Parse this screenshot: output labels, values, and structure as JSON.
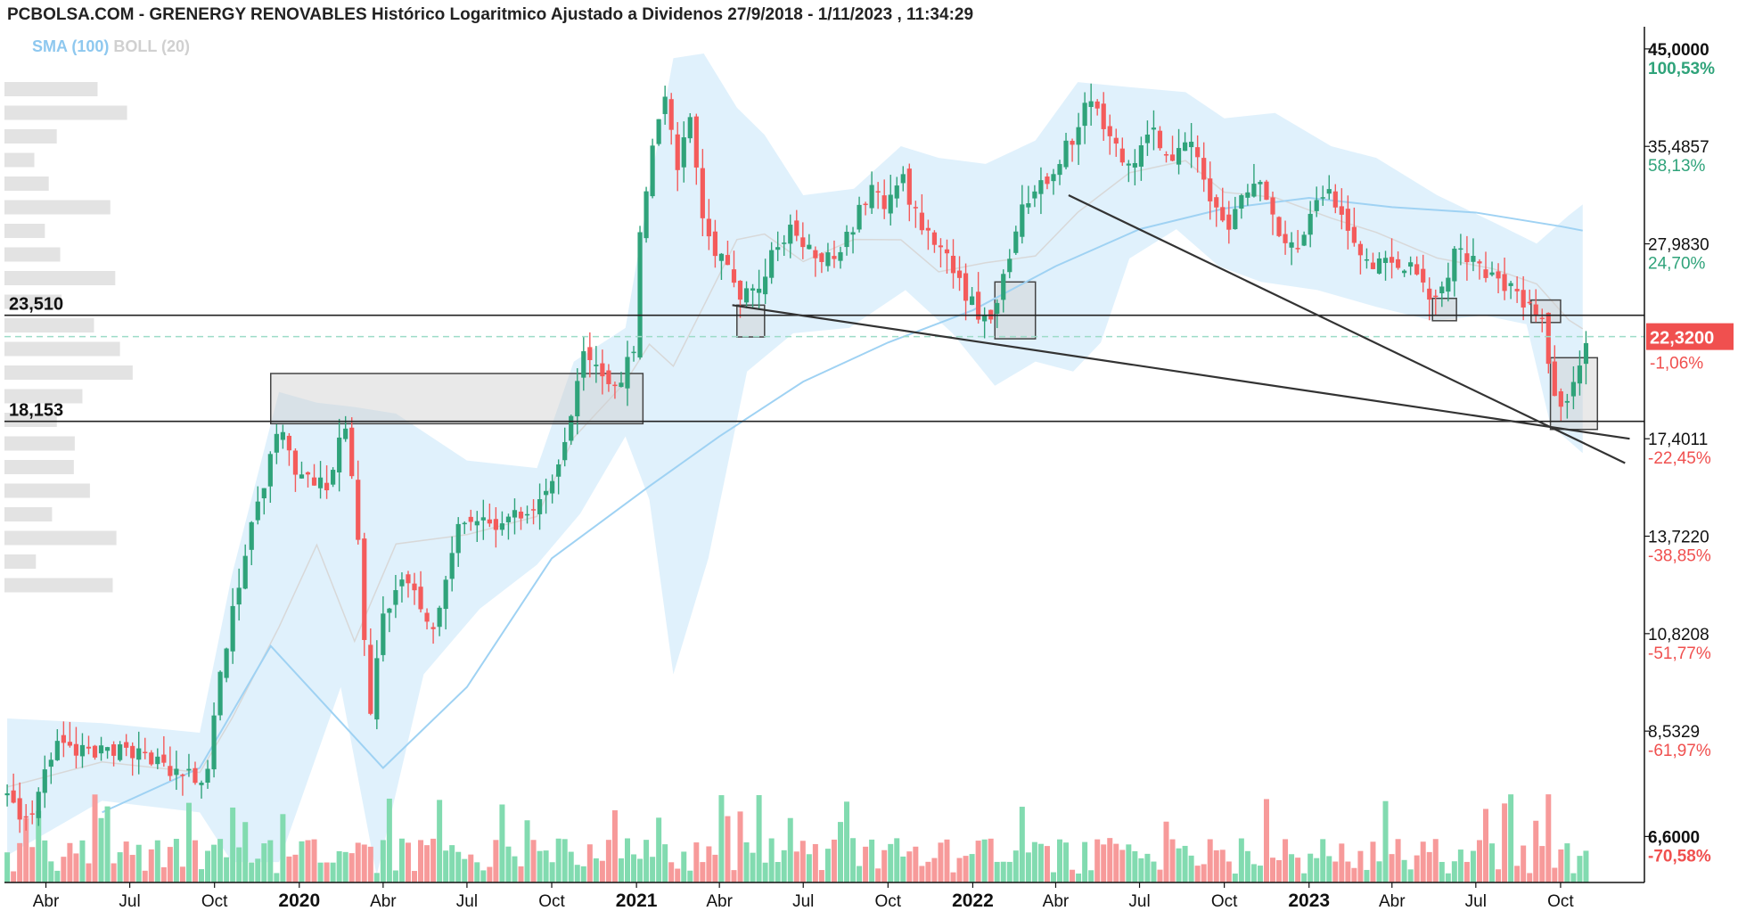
{
  "header": {
    "title": "PCBOLSA.COM - GRENERGY RENOVABLES Histórico Logaritmico Ajustado a Dividenos 27/9/2018 - 1/11/2023 , 11:34:29",
    "sma_label": "SMA (100)",
    "boll_label": "BOLL (20)"
  },
  "colors": {
    "up": "#2fa37a",
    "down": "#f45b5b",
    "vol_up": "#82dbb0",
    "vol_down": "#f79a9a",
    "band_fill": "#dbeefb",
    "sma": "#9fd2f3",
    "boll_mid": "#d8d8d8",
    "hline": "#222222",
    "last_price_bg": "#f0504f",
    "axis_text": "#111111",
    "pct_up": "#2fa37a",
    "pct_down": "#f0504f"
  },
  "chart_data": {
    "type": "candlestick",
    "scale": "log",
    "ylim": [
      5.9,
      47.5
    ],
    "x_range": [
      "2019-02-15",
      "2023-12-31"
    ],
    "right_axis": [
      {
        "price": "45,0000",
        "value": 45.0,
        "pct": "100,53%"
      },
      {
        "price": "35,4857",
        "value": 35.4857,
        "pct": "58,13%"
      },
      {
        "price": "27,9830",
        "value": 27.983,
        "pct": "24,70%"
      },
      {
        "price": "17,4011",
        "value": 17.4011,
        "pct": "-22,45%"
      },
      {
        "price": "13,7220",
        "value": 13.722,
        "pct": "-38,85%"
      },
      {
        "price": "10,8208",
        "value": 10.8208,
        "pct": "-51,77%"
      },
      {
        "price": "8,5329",
        "value": 8.5329,
        "pct": "-61,97%"
      },
      {
        "price": "6,6000",
        "value": 6.6,
        "pct": "-70,58%"
      }
    ],
    "last_price": {
      "value": 22.32,
      "label": "22,3200",
      "pct": "-1,06%"
    },
    "levels": [
      {
        "label": "23,510",
        "value": 23.51
      },
      {
        "label": "18,153",
        "value": 18.153
      }
    ],
    "x_ticks": [
      {
        "label": "Abr",
        "date": "2019-04-01",
        "bold": false
      },
      {
        "label": "Jul",
        "date": "2019-07-01",
        "bold": false
      },
      {
        "label": "Oct",
        "date": "2019-10-01",
        "bold": false
      },
      {
        "label": "2020",
        "date": "2020-01-01",
        "bold": true
      },
      {
        "label": "Abr",
        "date": "2020-04-01",
        "bold": false
      },
      {
        "label": "Jul",
        "date": "2020-07-01",
        "bold": false
      },
      {
        "label": "Oct",
        "date": "2020-10-01",
        "bold": false
      },
      {
        "label": "2021",
        "date": "2021-01-01",
        "bold": true
      },
      {
        "label": "Abr",
        "date": "2021-04-01",
        "bold": false
      },
      {
        "label": "Jul",
        "date": "2021-07-01",
        "bold": false
      },
      {
        "label": "Oct",
        "date": "2021-10-01",
        "bold": false
      },
      {
        "label": "2022",
        "date": "2022-01-01",
        "bold": true
      },
      {
        "label": "Abr",
        "date": "2022-04-01",
        "bold": false
      },
      {
        "label": "Jul",
        "date": "2022-07-01",
        "bold": false
      },
      {
        "label": "Oct",
        "date": "2022-10-01",
        "bold": false
      },
      {
        "label": "2023",
        "date": "2023-01-01",
        "bold": true
      },
      {
        "label": "Abr",
        "date": "2023-04-01",
        "bold": false
      },
      {
        "label": "Jul",
        "date": "2023-07-01",
        "bold": false
      },
      {
        "label": "Oct",
        "date": "2023-10-01",
        "bold": false
      }
    ],
    "price_path": [
      [
        "2019-02-18",
        7.4
      ],
      [
        "2019-03-01",
        7.1
      ],
      [
        "2019-03-15",
        6.7
      ],
      [
        "2019-04-01",
        8.0
      ],
      [
        "2019-04-20",
        8.3
      ],
      [
        "2019-05-20",
        8.1
      ],
      [
        "2019-06-20",
        8.1
      ],
      [
        "2019-07-20",
        8.0
      ],
      [
        "2019-08-15",
        7.8
      ],
      [
        "2019-09-10",
        7.6
      ],
      [
        "2019-09-25",
        7.8
      ],
      [
        "2019-10-05",
        9.5
      ],
      [
        "2019-10-20",
        11.5
      ],
      [
        "2019-11-05",
        13.2
      ],
      [
        "2019-11-25",
        16.0
      ],
      [
        "2019-12-10",
        18.5
      ],
      [
        "2019-12-25",
        16.2
      ],
      [
        "2020-01-15",
        15.5
      ],
      [
        "2020-02-05",
        15.8
      ],
      [
        "2020-02-20",
        18.3
      ],
      [
        "2020-03-02",
        14.5
      ],
      [
        "2020-03-10",
        11.5
      ],
      [
        "2020-03-18",
        8.8
      ],
      [
        "2020-03-30",
        11.0
      ],
      [
        "2020-04-15",
        12.0
      ],
      [
        "2020-05-01",
        12.5
      ],
      [
        "2020-05-20",
        10.8
      ],
      [
        "2020-06-10",
        12.5
      ],
      [
        "2020-06-25",
        14.5
      ],
      [
        "2020-07-15",
        14.5
      ],
      [
        "2020-08-05",
        13.8
      ],
      [
        "2020-08-25",
        14.5
      ],
      [
        "2020-09-20",
        15.2
      ],
      [
        "2020-10-10",
        16.5
      ],
      [
        "2020-10-25",
        19.2
      ],
      [
        "2020-11-05",
        21.8
      ],
      [
        "2020-11-25",
        20.5
      ],
      [
        "2020-12-10",
        20.0
      ],
      [
        "2020-12-28",
        21.2
      ],
      [
        "2021-01-05",
        28.5
      ],
      [
        "2021-01-20",
        36.0
      ],
      [
        "2021-02-01",
        40.5
      ],
      [
        "2021-02-15",
        34.0
      ],
      [
        "2021-02-28",
        37.5
      ],
      [
        "2021-03-15",
        29.5
      ],
      [
        "2021-03-30",
        27.5
      ],
      [
        "2021-04-15",
        25.8
      ],
      [
        "2021-04-30",
        24.5
      ],
      [
        "2021-05-15",
        25.5
      ],
      [
        "2021-06-01",
        27.8
      ],
      [
        "2021-06-20",
        29.0
      ],
      [
        "2021-07-10",
        27.2
      ],
      [
        "2021-08-01",
        27.0
      ],
      [
        "2021-08-25",
        29.5
      ],
      [
        "2021-09-15",
        32.0
      ],
      [
        "2021-09-30",
        31.0
      ],
      [
        "2021-10-15",
        33.5
      ],
      [
        "2021-11-01",
        30.0
      ],
      [
        "2021-11-25",
        28.0
      ],
      [
        "2021-12-15",
        25.5
      ],
      [
        "2022-01-10",
        23.5
      ],
      [
        "2022-01-25",
        24.0
      ],
      [
        "2022-02-10",
        27.5
      ],
      [
        "2022-02-25",
        31.0
      ],
      [
        "2022-03-15",
        32.5
      ],
      [
        "2022-04-05",
        34.0
      ],
      [
        "2022-04-20",
        36.5
      ],
      [
        "2022-05-05",
        39.5
      ],
      [
        "2022-05-20",
        37.5
      ],
      [
        "2022-06-10",
        35.0
      ],
      [
        "2022-06-25",
        34.5
      ],
      [
        "2022-07-15",
        37.0
      ],
      [
        "2022-08-05",
        35.0
      ],
      [
        "2022-08-25",
        36.5
      ],
      [
        "2022-09-15",
        31.0
      ],
      [
        "2022-10-05",
        28.5
      ],
      [
        "2022-10-20",
        31.0
      ],
      [
        "2022-11-10",
        32.0
      ],
      [
        "2022-11-30",
        28.0
      ],
      [
        "2022-12-20",
        27.5
      ],
      [
        "2023-01-10",
        31.5
      ],
      [
        "2023-01-25",
        32.5
      ],
      [
        "2023-02-10",
        28.5
      ],
      [
        "2023-03-01",
        27.2
      ],
      [
        "2023-03-20",
        26.5
      ],
      [
        "2023-04-10",
        26.8
      ],
      [
        "2023-05-01",
        25.8
      ],
      [
        "2023-05-20",
        24.2
      ],
      [
        "2023-06-10",
        27.5
      ],
      [
        "2023-06-30",
        26.5
      ],
      [
        "2023-07-20",
        25.5
      ],
      [
        "2023-08-10",
        25.0
      ],
      [
        "2023-08-30",
        24.0
      ],
      [
        "2023-09-10",
        23.2
      ],
      [
        "2023-09-20",
        20.5
      ],
      [
        "2023-09-30",
        18.8
      ],
      [
        "2023-10-10",
        18.6
      ],
      [
        "2023-10-20",
        21.0
      ],
      [
        "2023-11-01",
        22.32
      ]
    ],
    "boll_upper": [
      [
        "2019-02-18",
        8.8
      ],
      [
        "2019-06-01",
        8.7
      ],
      [
        "2019-09-15",
        8.5
      ],
      [
        "2019-10-20",
        12.5
      ],
      [
        "2019-12-10",
        19.5
      ],
      [
        "2020-01-20",
        19.0
      ],
      [
        "2020-03-01",
        18.8
      ],
      [
        "2020-04-15",
        18.5
      ],
      [
        "2020-07-01",
        16.5
      ],
      [
        "2020-09-15",
        16.2
      ],
      [
        "2020-10-25",
        21.0
      ],
      [
        "2020-12-20",
        22.8
      ],
      [
        "2021-01-15",
        32.0
      ],
      [
        "2021-02-10",
        44.0
      ],
      [
        "2021-03-15",
        44.5
      ],
      [
        "2021-04-20",
        39.0
      ],
      [
        "2021-05-20",
        36.5
      ],
      [
        "2021-07-01",
        31.5
      ],
      [
        "2021-08-25",
        32.0
      ],
      [
        "2021-10-15",
        35.5
      ],
      [
        "2021-11-25",
        34.5
      ],
      [
        "2022-01-15",
        34.0
      ],
      [
        "2022-03-10",
        36.0
      ],
      [
        "2022-04-25",
        41.5
      ],
      [
        "2022-06-20",
        41.0
      ],
      [
        "2022-08-20",
        40.5
      ],
      [
        "2022-10-01",
        38.0
      ],
      [
        "2022-11-25",
        38.5
      ],
      [
        "2023-01-25",
        35.5
      ],
      [
        "2023-03-15",
        34.5
      ],
      [
        "2023-05-20",
        31.5
      ],
      [
        "2023-07-20",
        29.5
      ],
      [
        "2023-09-05",
        28.0
      ],
      [
        "2023-10-10",
        30.0
      ],
      [
        "2023-10-25",
        30.8
      ]
    ],
    "boll_lower": [
      [
        "2019-02-18",
        6.3
      ],
      [
        "2019-06-01",
        7.2
      ],
      [
        "2019-09-15",
        7.0
      ],
      [
        "2019-10-20",
        6.2
      ],
      [
        "2019-12-10",
        6.2
      ],
      [
        "2020-02-15",
        9.5
      ],
      [
        "2020-03-25",
        6.0
      ],
      [
        "2020-05-15",
        9.8
      ],
      [
        "2020-07-15",
        11.5
      ],
      [
        "2020-09-15",
        12.8
      ],
      [
        "2020-11-01",
        14.5
      ],
      [
        "2020-12-20",
        17.5
      ],
      [
        "2021-01-15",
        15.0
      ],
      [
        "2021-02-10",
        9.8
      ],
      [
        "2021-03-20",
        13.0
      ],
      [
        "2021-05-01",
        20.5
      ],
      [
        "2021-06-20",
        22.5
      ],
      [
        "2021-08-20",
        22.8
      ],
      [
        "2021-10-20",
        25.0
      ],
      [
        "2021-12-10",
        22.5
      ],
      [
        "2022-01-25",
        19.8
      ],
      [
        "2022-03-10",
        21.0
      ],
      [
        "2022-04-20",
        20.5
      ],
      [
        "2022-05-20",
        22.0
      ],
      [
        "2022-06-20",
        27.0
      ],
      [
        "2022-08-10",
        29.0
      ],
      [
        "2022-09-25",
        26.5
      ],
      [
        "2022-11-10",
        25.5
      ],
      [
        "2023-01-10",
        25.0
      ],
      [
        "2023-03-15",
        24.0
      ],
      [
        "2023-05-15",
        23.2
      ],
      [
        "2023-07-10",
        23.5
      ],
      [
        "2023-08-25",
        23.0
      ],
      [
        "2023-09-20",
        18.0
      ],
      [
        "2023-10-25",
        16.8
      ]
    ],
    "sma_100": [
      [
        "2019-06-01",
        7.0
      ],
      [
        "2019-09-15",
        7.8
      ],
      [
        "2019-12-01",
        10.5
      ],
      [
        "2020-04-01",
        7.8
      ],
      [
        "2020-07-01",
        9.5
      ],
      [
        "2020-10-01",
        13.0
      ],
      [
        "2021-01-15",
        15.5
      ],
      [
        "2021-04-01",
        17.5
      ],
      [
        "2021-07-01",
        20.0
      ],
      [
        "2021-10-01",
        22.0
      ],
      [
        "2022-01-01",
        23.8
      ],
      [
        "2022-04-01",
        26.5
      ],
      [
        "2022-07-01",
        29.0
      ],
      [
        "2022-10-01",
        30.5
      ],
      [
        "2023-01-01",
        31.3
      ],
      [
        "2023-04-01",
        30.6
      ],
      [
        "2023-07-01",
        30.2
      ],
      [
        "2023-10-01",
        29.2
      ],
      [
        "2023-10-25",
        28.9
      ]
    ],
    "trendlines": [
      {
        "from": [
          "2021-04-15",
          24.1
        ],
        "to": [
          "2023-12-15",
          17.4
        ]
      },
      {
        "from": [
          "2022-04-15",
          31.5
        ],
        "to": [
          "2023-12-10",
          16.4
        ]
      }
    ],
    "zones": [
      {
        "from": [
          "2019-12-01",
          18.05
        ],
        "to": [
          "2021-01-08",
          20.4
        ]
      },
      {
        "from": [
          "2021-04-20",
          22.3
        ],
        "to": [
          "2021-05-20",
          24.1
        ]
      },
      {
        "from": [
          "2022-01-25",
          22.2
        ],
        "to": [
          "2022-03-10",
          25.5
        ]
      },
      {
        "from": [
          "2023-05-15",
          23.2
        ],
        "to": [
          "2023-06-10",
          24.5
        ]
      },
      {
        "from": [
          "2023-08-30",
          23.1
        ],
        "to": [
          "2023-10-01",
          24.4
        ]
      },
      {
        "from": [
          "2023-09-20",
          17.8
        ],
        "to": [
          "2023-11-10",
          21.2
        ]
      }
    ]
  }
}
